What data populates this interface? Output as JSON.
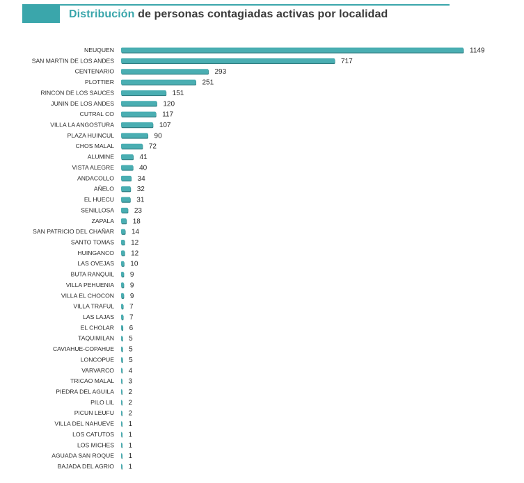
{
  "title_highlight": "Distribución",
  "title_rest": " de personas contagiadas activas por localidad",
  "colors": {
    "accent": "#3aa6ab",
    "bar": "#4aaeb2",
    "bar_shadow": "#2f7f83"
  },
  "chart_data": {
    "type": "bar",
    "orientation": "horizontal",
    "title": "Distribución de personas contagiadas activas por localidad",
    "xlabel": "",
    "ylabel": "",
    "xlim": [
      0,
      1149
    ],
    "grid": false,
    "categories": [
      "NEUQUEN",
      "SAN MARTIN DE LOS ANDES",
      "CENTENARIO",
      "PLOTTIER",
      "RINCON DE LOS SAUCES",
      "JUNIN DE LOS ANDES",
      "CUTRAL CO",
      "VILLA LA ANGOSTURA",
      "PLAZA HUINCUL",
      "CHOS MALAL",
      "ALUMINE",
      "VISTA ALEGRE",
      "ANDACOLLO",
      "AÑELO",
      "EL HUECU",
      "SENILLOSA",
      "ZAPALA",
      "SAN PATRICIO DEL CHAÑAR",
      "SANTO TOMAS",
      "HUINGANCO",
      "LAS OVEJAS",
      "BUTA RANQUIL",
      "VILLA PEHUENIA",
      "VILLA EL CHOCON",
      "VILLA TRAFUL",
      "LAS LAJAS",
      "EL CHOLAR",
      "TAQUIMILAN",
      "CAVIAHUE-COPAHUE",
      "LONCOPUE",
      "VARVARCO",
      "TRICAO MALAL",
      "PIEDRA DEL AGUILA",
      "PILO LIL",
      "PICUN LEUFU",
      "VILLA DEL NAHUEVE",
      "LOS CATUTOS",
      "LOS MICHES",
      "AGUADA SAN ROQUE",
      "BAJADA DEL AGRIO"
    ],
    "values": [
      1149,
      717,
      293,
      251,
      151,
      120,
      117,
      107,
      90,
      72,
      41,
      40,
      34,
      32,
      31,
      23,
      18,
      14,
      12,
      12,
      10,
      9,
      9,
      9,
      7,
      7,
      6,
      5,
      5,
      5,
      4,
      3,
      2,
      2,
      2,
      1,
      1,
      1,
      1,
      1
    ]
  }
}
